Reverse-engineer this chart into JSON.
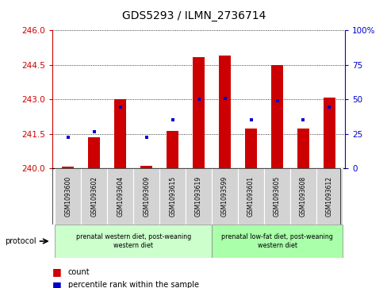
{
  "title": "GDS5293 / ILMN_2736714",
  "samples": [
    "GSM1093600",
    "GSM1093602",
    "GSM1093604",
    "GSM1093609",
    "GSM1093615",
    "GSM1093619",
    "GSM1093599",
    "GSM1093601",
    "GSM1093605",
    "GSM1093608",
    "GSM1093612"
  ],
  "bar_values": [
    240.08,
    241.35,
    243.0,
    240.12,
    241.62,
    244.85,
    244.9,
    241.72,
    244.5,
    241.72,
    243.07
  ],
  "percentile_values": [
    241.35,
    241.6,
    242.65,
    241.35,
    242.1,
    243.0,
    243.05,
    242.1,
    242.95,
    242.1,
    242.65
  ],
  "bar_base": 240.0,
  "ylim": [
    240.0,
    246.0
  ],
  "yticks": [
    240,
    241.5,
    243,
    244.5,
    246
  ],
  "right_yticks": [
    0,
    25,
    50,
    75,
    100
  ],
  "right_ylim": [
    0,
    100
  ],
  "bar_color": "#cc0000",
  "percentile_color": "#0000cc",
  "bg_color": "#ffffff",
  "group1_label": "prenatal western diet, post-weaning\nwestern diet",
  "group2_label": "prenatal low-fat diet, post-weaning\nwestern diet",
  "group1_color": "#ccffcc",
  "group2_color": "#aaffaa",
  "group1_count": 6,
  "group2_count": 5,
  "legend_count_label": "count",
  "legend_percentile_label": "percentile rank within the sample"
}
